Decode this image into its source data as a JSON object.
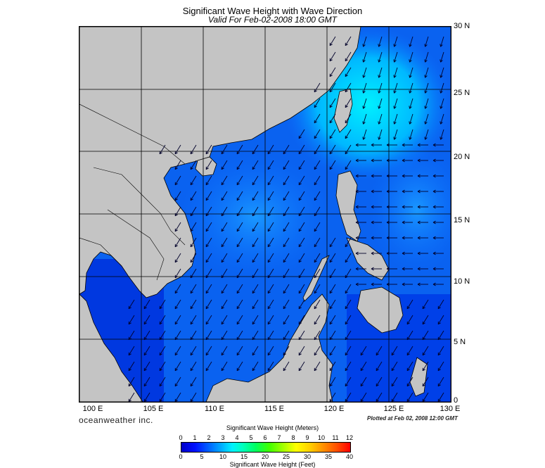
{
  "title": "Significant Wave Height with Wave Direction",
  "subtitle": "Valid For Feb-02-2008 18:00 GMT",
  "lat_labels": [
    "30 N",
    "25 N",
    "20 N",
    "15 N",
    "10 N",
    "5 N",
    "0"
  ],
  "lon_labels": [
    "100 E",
    "105 E",
    "110 E",
    "115 E",
    "120 E",
    "125 E",
    "130 E"
  ],
  "logo": "oceanweather inc.",
  "plotted": "Plotted at Feb 02, 2008 12:00 GMT",
  "colorbar": {
    "meters_label": "Significant Wave Height (Meters)",
    "feet_label": "Significant Wave Height (Feet)",
    "meters_ticks": [
      "0",
      "1",
      "2",
      "3",
      "4",
      "5",
      "6",
      "7",
      "8",
      "9",
      "10",
      "11",
      "12"
    ],
    "feet_ticks": [
      "0",
      "5",
      "10",
      "15",
      "20",
      "25",
      "30",
      "35",
      "40"
    ]
  },
  "colors": {
    "land": "#c4c4c4",
    "sea_deep": "#0030e0",
    "sea_mid": "#0a70ff",
    "sea_high": "#00e8ff",
    "grid": "#000000"
  }
}
